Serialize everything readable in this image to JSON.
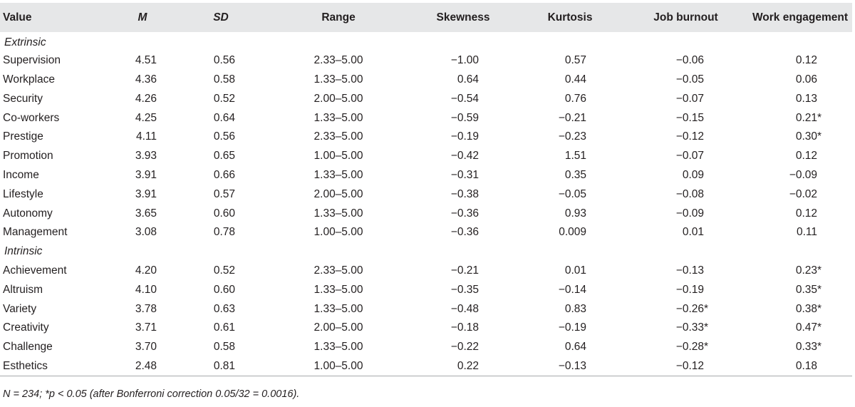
{
  "headers": [
    "Value",
    "M",
    "SD",
    "Range",
    "Skewness",
    "Kurtosis",
    "Job burnout",
    "Work engagement"
  ],
  "sections": [
    {
      "title": "Extrinsic",
      "rows": [
        [
          "Supervision",
          "4.51",
          "0.56",
          "2.33–5.00",
          "−1.00",
          "0.57",
          "−0.06",
          "0.12"
        ],
        [
          "Workplace",
          "4.36",
          "0.58",
          "1.33–5.00",
          "0.64",
          "0.44",
          "−0.05",
          "0.06"
        ],
        [
          "Security",
          "4.26",
          "0.52",
          "2.00–5.00",
          "−0.54",
          "0.76",
          "−0.07",
          "0.13"
        ],
        [
          "Co-workers",
          "4.25",
          "0.64",
          "1.33–5.00",
          "−0.59",
          "−0.21",
          "−0.15",
          "0.21*"
        ],
        [
          "Prestige",
          "4.11",
          "0.56",
          "2.33–5.00",
          "−0.19",
          "−0.23",
          "−0.12",
          "0.30*"
        ],
        [
          "Promotion",
          "3.93",
          "0.65",
          "1.00–5.00",
          "−0.42",
          "1.51",
          "−0.07",
          "0.12"
        ],
        [
          "Income",
          "3.91",
          "0.66",
          "1.33–5.00",
          "−0.31",
          "0.35",
          "0.09",
          "−0.09"
        ],
        [
          "Lifestyle",
          "3.91",
          "0.57",
          "2.00–5.00",
          "−0.38",
          "−0.05",
          "−0.08",
          "−0.02"
        ],
        [
          "Autonomy",
          "3.65",
          "0.60",
          "1.33–5.00",
          "−0.36",
          "0.93",
          "−0.09",
          "0.12"
        ],
        [
          "Management",
          "3.08",
          "0.78",
          "1.00–5.00",
          "−0.36",
          "0.009",
          "0.01",
          "0.11"
        ]
      ]
    },
    {
      "title": "Intrinsic",
      "rows": [
        [
          "Achievement",
          "4.20",
          "0.52",
          "2.33–5.00",
          "−0.21",
          "0.01",
          "−0.13",
          "0.23*"
        ],
        [
          "Altruism",
          "4.10",
          "0.60",
          "1.33–5.00",
          "−0.35",
          "−0.14",
          "−0.19",
          "0.35*"
        ],
        [
          "Variety",
          "3.78",
          "0.63",
          "1.33–5.00",
          "−0.48",
          "0.83",
          "−0.26*",
          "0.38*"
        ],
        [
          "Creativity",
          "3.71",
          "0.61",
          "2.00–5.00",
          "−0.18",
          "−0.19",
          "−0.33*",
          "0.47*"
        ],
        [
          "Challenge",
          "3.70",
          "0.58",
          "1.33–5.00",
          "−0.22",
          "0.64",
          "−0.28*",
          "0.33*"
        ],
        [
          "Esthetics",
          "2.48",
          "0.81",
          "1.00–5.00",
          "0.22",
          "−0.13",
          "−0.12",
          "0.18"
        ]
      ]
    }
  ],
  "note": "N = 234; *p < 0.05 (after Bonferroni correction 0.05/32 = 0.0016)."
}
